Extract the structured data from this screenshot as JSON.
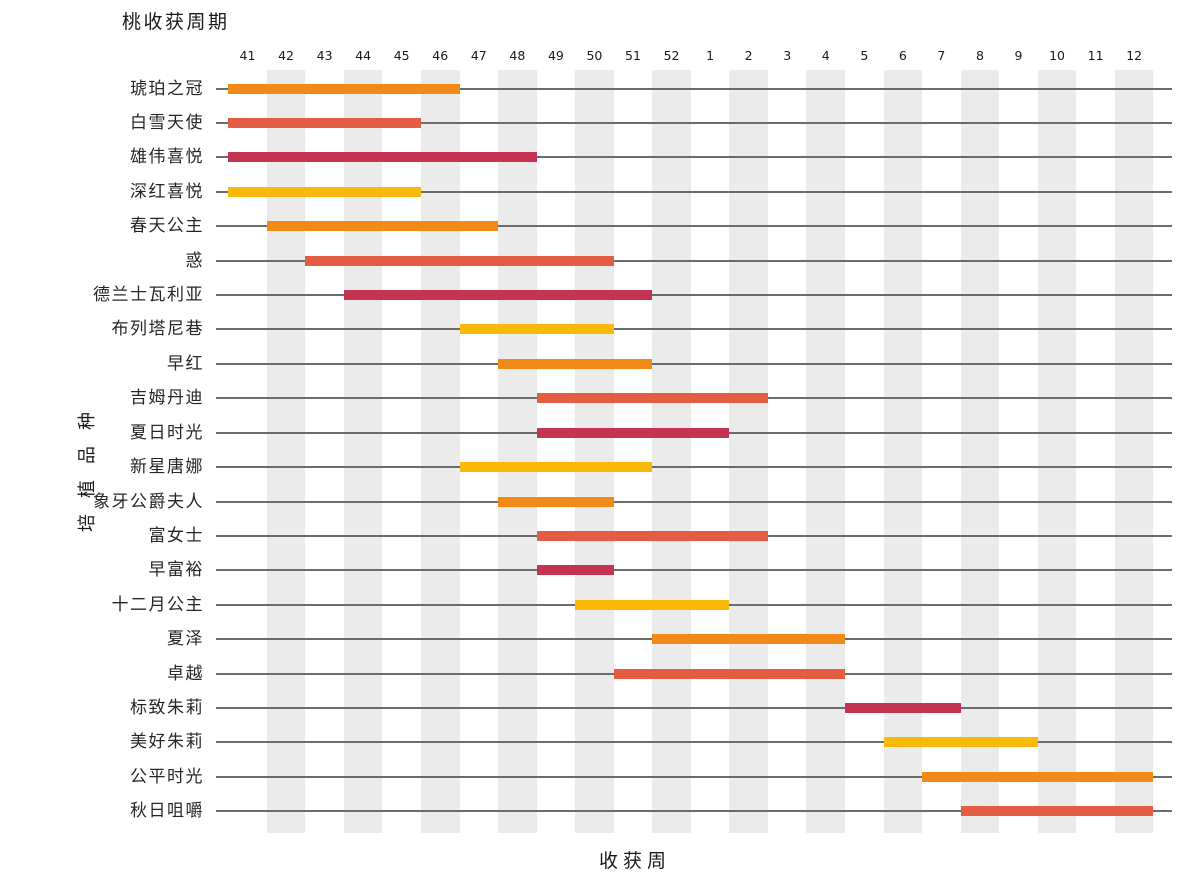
{
  "chart_data": {
    "type": "bar",
    "subtype": "gantt",
    "title": "桃收获周期",
    "xlabel": "收获周",
    "ylabel": "培植品种",
    "x_tick_labels": [
      "41",
      "42",
      "43",
      "44",
      "45",
      "46",
      "47",
      "48",
      "49",
      "50",
      "51",
      "52",
      "1",
      "2",
      "3",
      "4",
      "5",
      "6",
      "7",
      "8",
      "9",
      "10",
      "11",
      "12"
    ],
    "shaded_weeks": [
      "42",
      "44",
      "46",
      "48",
      "50",
      "52",
      "2",
      "4",
      "6",
      "8",
      "10",
      "12"
    ],
    "grid": "horizontal-lines-per-row",
    "legend": "none",
    "colors": {
      "orange": "#F28A18",
      "tomato": "#E25D41",
      "crimson": "#C43351",
      "yellow": "#F9B90B",
      "band": "#EBEBEB",
      "gridline": "#6B6B6B",
      "text": "#1A1A1A"
    },
    "color_cycle": [
      "orange",
      "tomato",
      "crimson",
      "yellow"
    ],
    "series": [
      {
        "label": "琥珀之冠",
        "start_week": 41,
        "end_week": 46
      },
      {
        "label": "白雪天使",
        "start_week": 41,
        "end_week": 45
      },
      {
        "label": "雄伟喜悦",
        "start_week": 41,
        "end_week": 48
      },
      {
        "label": "深红喜悦",
        "start_week": 41,
        "end_week": 45
      },
      {
        "label": "春天公主",
        "start_week": 42,
        "end_week": 47
      },
      {
        "label": "惑",
        "start_week": 43,
        "end_week": 50
      },
      {
        "label": "德兰士瓦利亚",
        "start_week": 44,
        "end_week": 51
      },
      {
        "label": "布列塔尼巷",
        "start_week": 47,
        "end_week": 50
      },
      {
        "label": "早红",
        "start_week": 48,
        "end_week": 51
      },
      {
        "label": "吉姆丹迪",
        "start_week": 49,
        "end_week": 2
      },
      {
        "label": "夏日时光",
        "start_week": 49,
        "end_week": 1
      },
      {
        "label": "新星唐娜",
        "start_week": 47,
        "end_week": 51
      },
      {
        "label": "象牙公爵夫人",
        "start_week": 48,
        "end_week": 50
      },
      {
        "label": "富女士",
        "start_week": 49,
        "end_week": 2
      },
      {
        "label": "早富裕",
        "start_week": 49,
        "end_week": 50
      },
      {
        "label": "十二月公主",
        "start_week": 50,
        "end_week": 1
      },
      {
        "label": "夏泽",
        "start_week": 52,
        "end_week": 4
      },
      {
        "label": "卓越",
        "start_week": 51,
        "end_week": 4
      },
      {
        "label": "标致朱莉",
        "start_week": 5,
        "end_week": 7
      },
      {
        "label": "美好朱莉",
        "start_week": 6,
        "end_week": 9
      },
      {
        "label": "公平时光",
        "start_week": 7,
        "end_week": 12
      },
      {
        "label": "秋日咀嚼",
        "start_week": 8,
        "end_week": 12
      }
    ]
  }
}
